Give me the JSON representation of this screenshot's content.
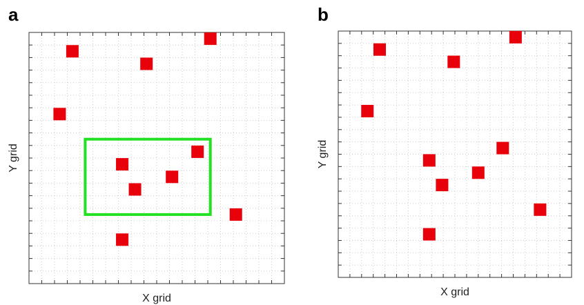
{
  "chart_data": [
    {
      "type": "scatter",
      "panel_label": "a",
      "xlabel": "X grid",
      "ylabel": "Y grid",
      "x": [
        3.4,
        14.2,
        9.2,
        2.4,
        13.2,
        7.3,
        11.2,
        8.3,
        16.2,
        7.3
      ],
      "y": [
        18.5,
        19.5,
        17.5,
        13.5,
        10.5,
        9.5,
        8.5,
        7.5,
        5.5,
        3.5
      ],
      "color": "#e8000b",
      "xlim": [
        0,
        20
      ],
      "ylim": [
        0,
        20
      ],
      "xticks": [
        0,
        1,
        2,
        3,
        4,
        5,
        6,
        7,
        8,
        9,
        10,
        11,
        12,
        13,
        14,
        15,
        16,
        17,
        18,
        19,
        20
      ],
      "yticks": [
        0,
        1,
        2,
        3,
        4,
        5,
        6,
        7,
        8,
        9,
        10,
        11,
        12,
        13,
        14,
        15,
        16,
        17,
        18,
        19,
        20
      ],
      "grid": true,
      "highlight_box": {
        "xlim": [
          4.4,
          14.2
        ],
        "ylim": [
          5.5,
          11.5
        ],
        "color": "#22e022"
      }
    },
    {
      "type": "scatter",
      "panel_label": "b",
      "xlabel": "X grid",
      "ylabel": "Y grid",
      "x": [
        3.55,
        15.2,
        9.9,
        2.5,
        14.1,
        7.8,
        12.0,
        8.9,
        17.3,
        7.8
      ],
      "y": [
        18.5,
        19.5,
        17.5,
        13.5,
        10.5,
        9.5,
        8.5,
        7.5,
        5.5,
        3.5
      ],
      "color": "#e8000b",
      "xlim": [
        0,
        20
      ],
      "ylim": [
        0,
        20
      ],
      "xticks": [
        0,
        1,
        2,
        3,
        4,
        5,
        6,
        7,
        8,
        9,
        10,
        11,
        12,
        13,
        14,
        15,
        16,
        17,
        18,
        19,
        20
      ],
      "yticks": [
        0,
        1,
        2,
        3,
        4,
        5,
        6,
        7,
        8,
        9,
        10,
        11,
        12,
        13,
        14,
        15,
        16,
        17,
        18,
        19,
        20
      ],
      "grid": true
    }
  ]
}
